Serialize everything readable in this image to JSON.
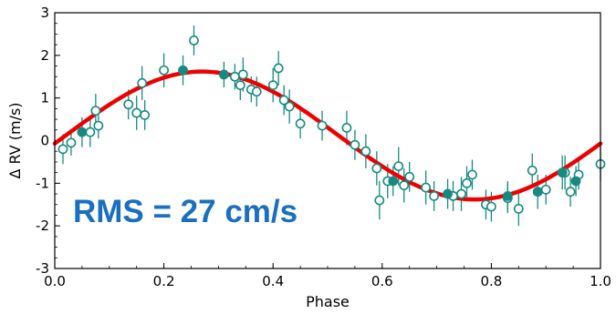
{
  "chart_data": {
    "type": "scatter",
    "xlabel": "Phase",
    "ylabel": "Δ RV (m/s)",
    "xlim": [
      0.0,
      1.0
    ],
    "ylim": [
      -3,
      3
    ],
    "xticks": [
      "0.0",
      "0.2",
      "0.4",
      "0.6",
      "0.8",
      "1.0"
    ],
    "yticks": [
      "-3",
      "-2",
      "-1",
      "0",
      "1",
      "2",
      "3"
    ],
    "annotation": "RMS = 27 cm/s",
    "annotation_color": "#1a6fc0",
    "point_color": "#168a80",
    "fit_color": "#ee0000",
    "fit": {
      "type": "sinusoid",
      "amplitude": 1.5,
      "offset": 0.12,
      "peak_phase": 0.27,
      "period": 1.0
    },
    "series": [
      {
        "marker": "open-circle",
        "points": [
          {
            "x": 0.015,
            "y": -0.2,
            "err": 0.35
          },
          {
            "x": 0.03,
            "y": -0.05,
            "err": 0.3
          },
          {
            "x": 0.065,
            "y": 0.2,
            "err": 0.35
          },
          {
            "x": 0.075,
            "y": 0.7,
            "err": 0.4
          },
          {
            "x": 0.08,
            "y": 0.35,
            "err": 0.3
          },
          {
            "x": 0.135,
            "y": 0.85,
            "err": 0.35
          },
          {
            "x": 0.15,
            "y": 0.65,
            "err": 0.4
          },
          {
            "x": 0.16,
            "y": 1.35,
            "err": 0.4
          },
          {
            "x": 0.165,
            "y": 0.6,
            "err": 0.35
          },
          {
            "x": 0.2,
            "y": 1.65,
            "err": 0.4
          },
          {
            "x": 0.255,
            "y": 2.35,
            "err": 0.35
          },
          {
            "x": 0.33,
            "y": 1.5,
            "err": 0.3
          },
          {
            "x": 0.34,
            "y": 1.3,
            "err": 0.35
          },
          {
            "x": 0.345,
            "y": 1.55,
            "err": 0.4
          },
          {
            "x": 0.36,
            "y": 1.2,
            "err": 0.3
          },
          {
            "x": 0.37,
            "y": 1.15,
            "err": 0.35
          },
          {
            "x": 0.4,
            "y": 1.3,
            "err": 0.4
          },
          {
            "x": 0.41,
            "y": 1.7,
            "err": 0.4
          },
          {
            "x": 0.42,
            "y": 0.95,
            "err": 0.35
          },
          {
            "x": 0.43,
            "y": 0.8,
            "err": 0.4
          },
          {
            "x": 0.45,
            "y": 0.4,
            "err": 0.35
          },
          {
            "x": 0.49,
            "y": 0.35,
            "err": 0.35
          },
          {
            "x": 0.535,
            "y": 0.3,
            "err": 0.4
          },
          {
            "x": 0.55,
            "y": -0.1,
            "err": 0.35
          },
          {
            "x": 0.57,
            "y": -0.25,
            "err": 0.4
          },
          {
            "x": 0.59,
            "y": -0.65,
            "err": 0.4
          },
          {
            "x": 0.595,
            "y": -1.4,
            "err": 0.45
          },
          {
            "x": 0.61,
            "y": -0.95,
            "err": 0.4
          },
          {
            "x": 0.63,
            "y": -0.6,
            "err": 0.45
          },
          {
            "x": 0.64,
            "y": -1.05,
            "err": 0.4
          },
          {
            "x": 0.65,
            "y": -0.85,
            "err": 0.35
          },
          {
            "x": 0.68,
            "y": -1.1,
            "err": 0.4
          },
          {
            "x": 0.695,
            "y": -1.3,
            "err": 0.35
          },
          {
            "x": 0.73,
            "y": -1.3,
            "err": 0.35
          },
          {
            "x": 0.745,
            "y": -1.25,
            "err": 0.4
          },
          {
            "x": 0.755,
            "y": -1.0,
            "err": 0.4
          },
          {
            "x": 0.765,
            "y": -0.8,
            "err": 0.35
          },
          {
            "x": 0.79,
            "y": -1.5,
            "err": 0.35
          },
          {
            "x": 0.8,
            "y": -1.55,
            "err": 0.35
          },
          {
            "x": 0.83,
            "y": -1.35,
            "err": 0.35
          },
          {
            "x": 0.85,
            "y": -1.6,
            "err": 0.4
          },
          {
            "x": 0.875,
            "y": -0.7,
            "err": 0.4
          },
          {
            "x": 0.9,
            "y": -1.15,
            "err": 0.35
          },
          {
            "x": 0.935,
            "y": -0.75,
            "err": 0.4
          },
          {
            "x": 0.945,
            "y": -1.2,
            "err": 0.35
          },
          {
            "x": 0.96,
            "y": -0.8,
            "err": 0.35
          },
          {
            "x": 1.0,
            "y": -0.55,
            "err": 0.4
          }
        ]
      },
      {
        "marker": "filled-circle",
        "points": [
          {
            "x": 0.05,
            "y": 0.2,
            "err": 0.35
          },
          {
            "x": 0.235,
            "y": 1.65,
            "err": 0.35
          },
          {
            "x": 0.31,
            "y": 1.55,
            "err": 0.3
          },
          {
            "x": 0.62,
            "y": -0.95,
            "err": 0.35
          },
          {
            "x": 0.72,
            "y": -1.25,
            "err": 0.35
          },
          {
            "x": 0.83,
            "y": -1.3,
            "err": 0.35
          },
          {
            "x": 0.885,
            "y": -1.2,
            "err": 0.4
          },
          {
            "x": 0.93,
            "y": -0.75,
            "err": 0.4
          },
          {
            "x": 0.955,
            "y": -0.95,
            "err": 0.35
          }
        ]
      }
    ]
  }
}
